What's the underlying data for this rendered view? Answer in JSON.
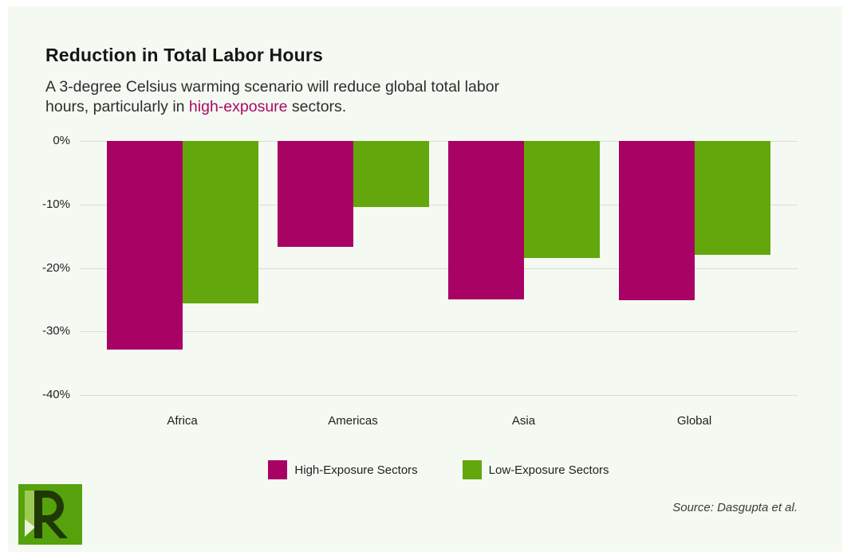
{
  "card": {
    "title": "Reduction in Total Labor Hours",
    "subtitle": {
      "line1": "A 3-degree Celsius warming scenario will reduce global total labor",
      "line2_prefix": "hours, particularly in ",
      "highlight": "high-exposure",
      "line2_suffix": " sectors."
    },
    "source": "Source: Dasgupta et al."
  },
  "colors": {
    "high": "#a80264",
    "low": "#63a70c",
    "background": "#f4f9f2",
    "grid": "#d9ded4",
    "highlight_text": "#ab0a67",
    "logo_green": "#55a20d",
    "logo_dark": "#1f3906"
  },
  "chart_data": {
    "type": "bar",
    "title": "Reduction in Total Labor Hours",
    "categories": [
      "Africa",
      "Americas",
      "Asia",
      "Global"
    ],
    "series": [
      {
        "name": "High-Exposure Sectors",
        "color_key": "high",
        "values": [
          -32.8,
          -16.7,
          -25.0,
          -25.1
        ]
      },
      {
        "name": "Low-Exposure Sectors",
        "color_key": "low",
        "values": [
          -25.6,
          -10.4,
          -18.4,
          -17.9
        ]
      }
    ],
    "xlabel": "",
    "ylabel": "",
    "ylim": [
      -40,
      0
    ],
    "yticks": [
      {
        "value": 0,
        "label": "0%"
      },
      {
        "value": -10,
        "label": "-10%"
      },
      {
        "value": -20,
        "label": "-20%"
      },
      {
        "value": -30,
        "label": "-30%"
      },
      {
        "value": -40,
        "label": "-40%"
      }
    ],
    "grid": "horizontal",
    "legend_position": "bottom"
  }
}
